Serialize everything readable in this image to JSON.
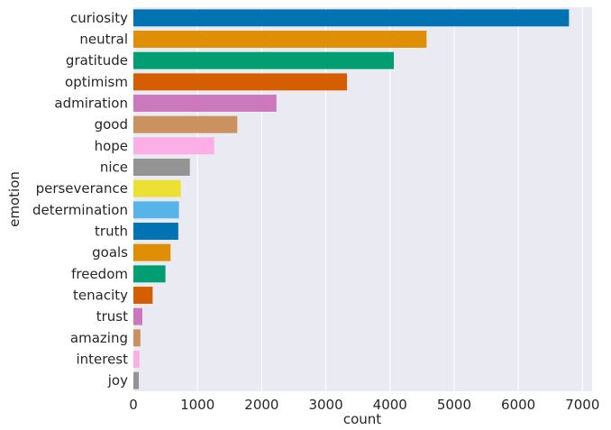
{
  "chart_data": {
    "type": "bar",
    "orientation": "horizontal",
    "xlabel": "count",
    "ylabel": "emotion",
    "xlim": [
      0,
      7150
    ],
    "x_ticks": [
      0,
      1000,
      2000,
      3000,
      4000,
      5000,
      6000,
      7000
    ],
    "grid": true,
    "legend": "none",
    "categories": [
      "curiosity",
      "neutral",
      "gratitude",
      "optimism",
      "admiration",
      "good",
      "hope",
      "nice",
      "perseverance",
      "determination",
      "truth",
      "goals",
      "freedom",
      "tenacity",
      "trust",
      "amazing",
      "interest",
      "joy"
    ],
    "values": [
      6790,
      4570,
      4060,
      3330,
      2230,
      1620,
      1260,
      880,
      740,
      710,
      700,
      580,
      500,
      300,
      140,
      110,
      95,
      85
    ],
    "colors": [
      "#0173b2",
      "#de8f05",
      "#029e73",
      "#d55e00",
      "#cc78bc",
      "#ca9161",
      "#fbafe4",
      "#949494",
      "#ece133",
      "#56b4e9",
      "#0173b2",
      "#de8f05",
      "#029e73",
      "#d55e00",
      "#cc78bc",
      "#ca9161",
      "#fbafe4",
      "#949494"
    ]
  }
}
